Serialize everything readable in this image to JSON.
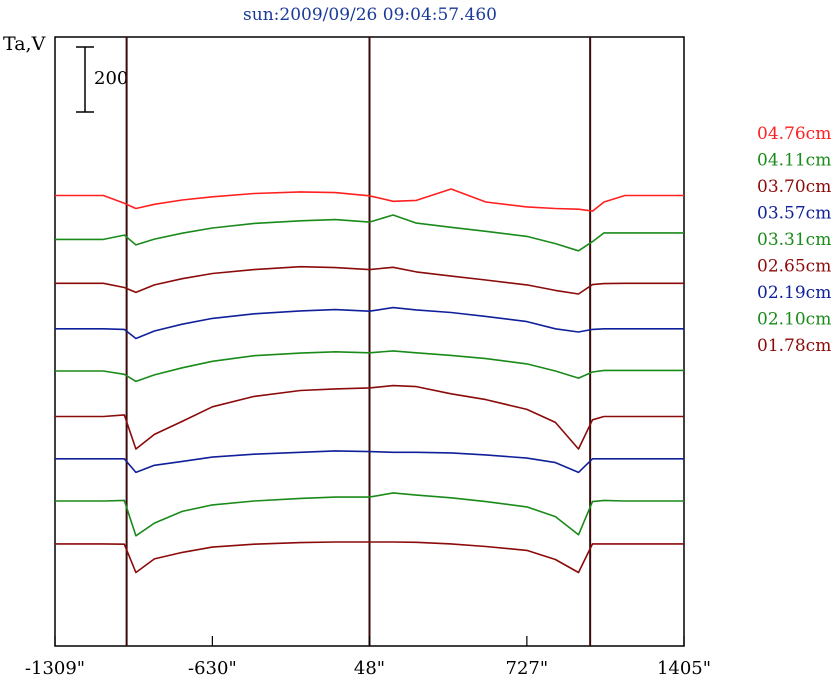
{
  "chart_data": {
    "type": "line",
    "title": "sun:2009/09/26 09:04:57.460",
    "ylabel": "Ta,V",
    "xlabel": "",
    "scale_bar_label": "200",
    "x_ticks": [
      "-1309\"",
      "-630\"",
      "48\"",
      "727\"",
      "1405\""
    ],
    "x_tick_values": [
      -1309,
      -630,
      48,
      727,
      1405
    ],
    "xlim": [
      -1309,
      1405
    ],
    "markers_x": [
      -1000,
      48,
      1000
    ],
    "series": [
      {
        "name": "04.76cm",
        "color": "#ff2020",
        "values": [
          460,
          460,
          436,
          420,
          433,
          446,
          456,
          466,
          471,
          469,
          459,
          442,
          445,
          480,
          440,
          425,
          420,
          418,
          412,
          440,
          460,
          460,
          460
        ]
      },
      {
        "name": "04.11cm",
        "color": "#1a8a1a",
        "values": [
          325,
          325,
          338,
          308,
          326,
          344,
          360,
          374,
          382,
          386,
          378,
          400,
          375,
          362,
          350,
          334,
          312,
          290,
          318,
          345,
          345,
          345,
          345
        ]
      },
      {
        "name": "03.70cm",
        "color": "#8b0a0a",
        "values": [
          190,
          190,
          177,
          162,
          185,
          204,
          220,
          232,
          241,
          238,
          232,
          239,
          225,
          212,
          200,
          185,
          168,
          157,
          186,
          189,
          190,
          190,
          190
        ]
      },
      {
        "name": "03.57cm",
        "color": "#10209a",
        "values": [
          50,
          50,
          48,
          20,
          43,
          64,
          82,
          96,
          105,
          109,
          104,
          115,
          108,
          100,
          88,
          72,
          50,
          40,
          48,
          50,
          50,
          50,
          50
        ]
      },
      {
        "name": "03.31cm",
        "color": "#1a8a1a",
        "values": [
          -80,
          -80,
          -90,
          -112,
          -92,
          -70,
          -50,
          -33,
          -25,
          -21,
          -24,
          -18,
          -24,
          -32,
          -42,
          -58,
          -80,
          -102,
          -83,
          -78,
          -78,
          -78,
          -78
        ]
      },
      {
        "name": "02.65cm",
        "color": "#8b0a0a",
        "values": [
          -220,
          -220,
          -215,
          -320,
          -275,
          -235,
          -190,
          -158,
          -140,
          -135,
          -132,
          -125,
          -128,
          -150,
          -168,
          -198,
          -238,
          -320,
          -230,
          -220,
          -220,
          -220,
          -220
        ]
      },
      {
        "name": "02.19cm",
        "color": "#10209a",
        "values": [
          -350,
          -350,
          -350,
          -392,
          -370,
          -358,
          -345,
          -336,
          -330,
          -326,
          -328,
          -330,
          -330,
          -332,
          -338,
          -348,
          -362,
          -392,
          -350,
          -350,
          -350,
          -350,
          -350
        ]
      },
      {
        "name": "02.10cm",
        "color": "#1a8a1a",
        "values": [
          -480,
          -480,
          -478,
          -587,
          -548,
          -512,
          -492,
          -480,
          -472,
          -468,
          -468,
          -455,
          -462,
          -470,
          -482,
          -498,
          -528,
          -584,
          -482,
          -478,
          -480,
          -480,
          -480
        ]
      },
      {
        "name": "01.78cm",
        "color": "#8b0a0a",
        "values": [
          -612,
          -612,
          -613,
          -700,
          -658,
          -638,
          -622,
          -613,
          -608,
          -606,
          -606,
          -606,
          -607,
          -612,
          -620,
          -632,
          -660,
          -700,
          -612,
          -612,
          -612,
          -612,
          -612
        ]
      }
    ],
    "x": [
      -1309,
      -1100,
      -1010,
      -960,
      -880,
      -760,
      -630,
      -450,
      -250,
      -100,
      48,
      150,
      250,
      400,
      550,
      727,
      850,
      950,
      1010,
      1060,
      1150,
      1300,
      1405
    ],
    "grid": false,
    "legend_position": "right"
  }
}
